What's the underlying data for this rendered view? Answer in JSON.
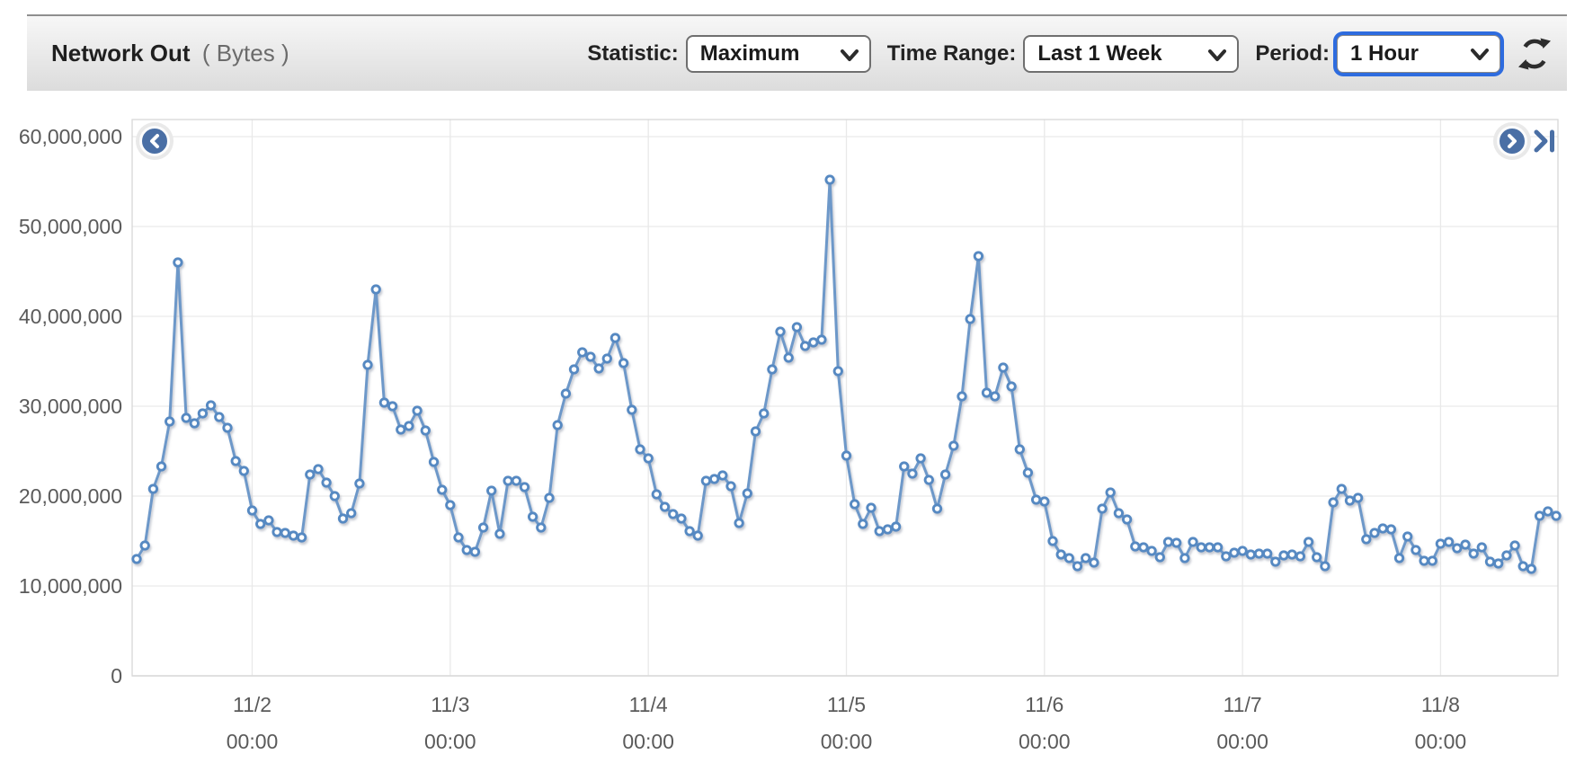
{
  "header": {
    "title": "Network Out",
    "unit": "( Bytes )"
  },
  "controls": {
    "statistic": {
      "label": "Statistic:",
      "value": "Maximum"
    },
    "time_range": {
      "label": "Time Range:",
      "value": "Last 1 Week"
    },
    "period": {
      "label": "Period:",
      "value": "1 Hour"
    }
  },
  "icons": {
    "refresh": "refresh-icon",
    "scroll_left": "chevron-left-icon",
    "scroll_right": "chevron-right-icon",
    "skip_end": "skip-to-end-icon",
    "select_arrow": "chevron-down-icon"
  },
  "colors": {
    "line": "#6d98c9",
    "marker_stroke": "#5689c2",
    "marker_fill": "#ffffff",
    "grid": "#e9e9e9",
    "plot_border": "#d7d7d7",
    "axis_text": "#5a5a5a",
    "button_blue": "#4a6fa5",
    "focus_ring": "#2e6cdf",
    "refresh_icon": "#2d2d2d"
  },
  "chart_data": {
    "type": "line",
    "title": "Network Out (Bytes)",
    "xlabel": "",
    "ylabel": "",
    "unit": "Bytes",
    "period": "1 hour per point",
    "ylim": [
      0,
      62000000
    ],
    "grid": true,
    "legend": false,
    "y_ticks": [
      0,
      10000000,
      20000000,
      30000000,
      40000000,
      50000000,
      60000000
    ],
    "y_tick_labels": [
      "0",
      "10,000,000",
      "20,000,000",
      "30,000,000",
      "40,000,000",
      "50,000,000",
      "60,000,000"
    ],
    "x_tick_labels": [
      {
        "date": "11/2",
        "time": "00:00"
      },
      {
        "date": "11/3",
        "time": "00:00"
      },
      {
        "date": "11/4",
        "time": "00:00"
      },
      {
        "date": "11/5",
        "time": "00:00"
      },
      {
        "date": "11/6",
        "time": "00:00"
      },
      {
        "date": "11/7",
        "time": "00:00"
      },
      {
        "date": "11/8",
        "time": "00:00"
      }
    ],
    "x_tick_indices": [
      14,
      38,
      62,
      86,
      110,
      134,
      158
    ],
    "series": [
      {
        "name": "Network Out Maximum",
        "values": [
          13000000,
          14500000,
          20800000,
          23300000,
          28300000,
          46000000,
          28700000,
          28100000,
          29200000,
          30100000,
          28800000,
          27600000,
          23900000,
          22800000,
          18400000,
          16900000,
          17300000,
          16000000,
          15900000,
          15600000,
          15400000,
          22400000,
          23000000,
          21500000,
          20000000,
          17500000,
          18100000,
          21400000,
          34600000,
          43000000,
          30400000,
          30000000,
          27400000,
          27800000,
          29500000,
          27300000,
          23800000,
          20700000,
          19000000,
          15400000,
          14000000,
          13800000,
          16500000,
          20600000,
          15800000,
          21700000,
          21700000,
          21000000,
          17700000,
          16500000,
          19800000,
          27900000,
          31400000,
          34100000,
          36000000,
          35500000,
          34200000,
          35300000,
          37600000,
          34800000,
          29600000,
          25200000,
          24200000,
          20200000,
          18800000,
          18000000,
          17500000,
          16100000,
          15600000,
          21700000,
          21900000,
          22300000,
          21100000,
          17000000,
          20300000,
          27200000,
          29200000,
          34100000,
          38300000,
          35400000,
          38800000,
          36700000,
          37100000,
          37400000,
          55200000,
          33900000,
          24500000,
          19100000,
          16900000,
          18700000,
          16100000,
          16300000,
          16600000,
          23300000,
          22500000,
          24200000,
          21800000,
          18600000,
          22400000,
          25600000,
          31100000,
          39700000,
          46700000,
          31500000,
          31100000,
          34300000,
          32200000,
          25200000,
          22600000,
          19600000,
          19400000,
          15000000,
          13500000,
          13100000,
          12200000,
          13100000,
          12600000,
          18600000,
          20400000,
          18100000,
          17400000,
          14400000,
          14300000,
          13900000,
          13200000,
          14900000,
          14800000,
          13100000,
          14900000,
          14300000,
          14300000,
          14300000,
          13300000,
          13700000,
          13900000,
          13500000,
          13600000,
          13600000,
          12700000,
          13400000,
          13500000,
          13300000,
          14900000,
          13200000,
          12200000,
          19300000,
          20800000,
          19500000,
          19800000,
          15200000,
          15900000,
          16400000,
          16300000,
          13100000,
          15500000,
          14000000,
          12800000,
          12800000,
          14700000,
          14900000,
          14200000,
          14600000,
          13600000,
          14300000,
          12700000,
          12500000,
          13400000,
          14500000,
          12200000,
          11900000,
          17800000,
          18300000,
          17800000
        ]
      }
    ]
  }
}
